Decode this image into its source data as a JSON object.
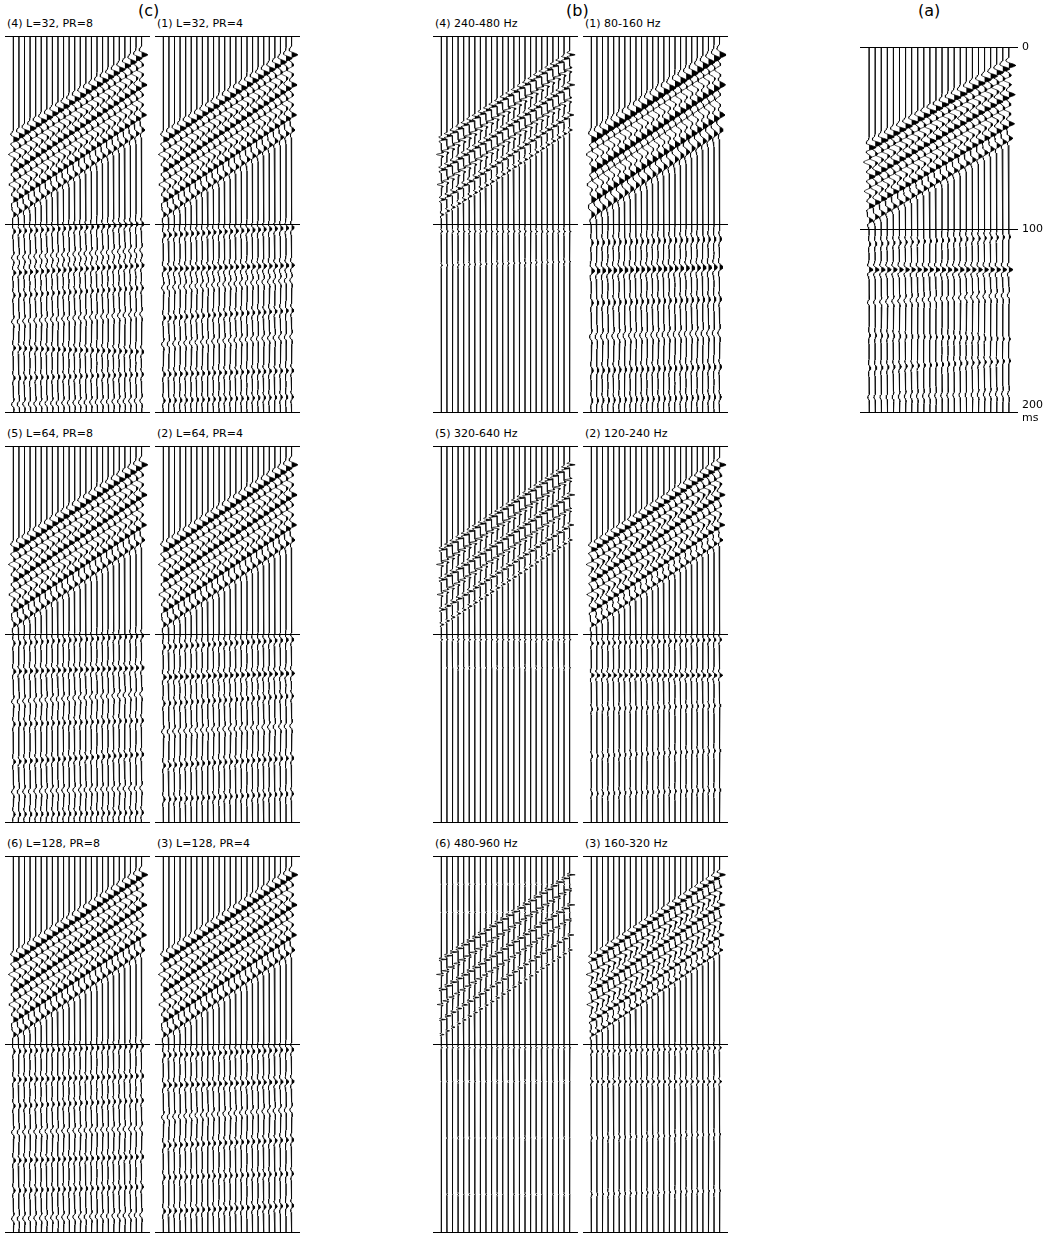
{
  "chart_data": [
    {
      "type": "wiggle",
      "group": "(c)",
      "title": "(4) L=32, PR=8",
      "traces": 24,
      "frequency_hz": 150,
      "color": "#000000",
      "ylim": [
        0,
        200
      ],
      "yticks": [
        0,
        100,
        200
      ],
      "grid": true,
      "tick_labels": false,
      "events": [
        {
          "t_first": 55,
          "t_last": 10,
          "amplitude": 0.95
        },
        {
          "t_first": 63,
          "t_last": 18,
          "amplitude": -0.75
        },
        {
          "t_first": 71,
          "t_last": 26,
          "amplitude": 0.85
        },
        {
          "t_first": 79,
          "t_last": 34,
          "amplitude": -0.7
        },
        {
          "t_first": 87,
          "t_last": 42,
          "amplitude": 0.75
        },
        {
          "t_first": 95,
          "t_last": 50,
          "amplitude": 0.5
        },
        {
          "t_first": 104,
          "t_last": 100,
          "amplitude": 0.35
        },
        {
          "t_first": 118,
          "t_last": 114,
          "amplitude": -0.3
        },
        {
          "t_first": 126,
          "t_last": 122,
          "amplitude": 0.4
        },
        {
          "t_first": 138,
          "t_last": 134,
          "amplitude": 0.3
        },
        {
          "t_first": 152,
          "t_last": 148,
          "amplitude": -0.3
        },
        {
          "t_first": 166,
          "t_last": 168,
          "amplitude": 0.35
        },
        {
          "t_first": 182,
          "t_last": 180,
          "amplitude": 0.3
        },
        {
          "t_first": 196,
          "t_last": 194,
          "amplitude": -0.3
        }
      ]
    },
    {
      "type": "wiggle",
      "group": "(c)",
      "title": "(1) L=32, PR=4",
      "traces": 24,
      "frequency_hz": 150,
      "color": "#000000",
      "ylim": [
        0,
        200
      ],
      "yticks": [
        0,
        100,
        200
      ],
      "grid": true,
      "tick_labels": false,
      "events": [
        {
          "t_first": 55,
          "t_last": 10,
          "amplitude": 0.95
        },
        {
          "t_first": 63,
          "t_last": 18,
          "amplitude": -0.75
        },
        {
          "t_first": 71,
          "t_last": 26,
          "amplitude": 0.85
        },
        {
          "t_first": 79,
          "t_last": 34,
          "amplitude": -0.7
        },
        {
          "t_first": 87,
          "t_last": 42,
          "amplitude": 0.75
        },
        {
          "t_first": 95,
          "t_last": 50,
          "amplitude": 0.5
        },
        {
          "t_first": 106,
          "t_last": 102,
          "amplitude": 0.4
        },
        {
          "t_first": 124,
          "t_last": 122,
          "amplitude": 0.45
        },
        {
          "t_first": 134,
          "t_last": 130,
          "amplitude": -0.3
        },
        {
          "t_first": 150,
          "t_last": 146,
          "amplitude": 0.35
        },
        {
          "t_first": 164,
          "t_last": 160,
          "amplitude": -0.3
        },
        {
          "t_first": 180,
          "t_last": 178,
          "amplitude": 0.35
        },
        {
          "t_first": 194,
          "t_last": 192,
          "amplitude": 0.3
        }
      ]
    },
    {
      "type": "wiggle",
      "group": "(b)",
      "title": "(4) 240-480 Hz",
      "traces": 24,
      "frequency_hz": 360,
      "color": "#000000",
      "ylim": [
        0,
        200
      ],
      "yticks": [
        0,
        100,
        200
      ],
      "grid": true,
      "tick_labels": false,
      "events": [
        {
          "t_first": 55,
          "t_last": 10,
          "amplitude": 0.9
        },
        {
          "t_first": 63,
          "t_last": 18,
          "amplitude": -0.8
        },
        {
          "t_first": 71,
          "t_last": 26,
          "amplitude": 0.85
        },
        {
          "t_first": 79,
          "t_last": 34,
          "amplitude": -0.7
        },
        {
          "t_first": 87,
          "t_last": 42,
          "amplitude": 0.7
        },
        {
          "t_first": 95,
          "t_last": 50,
          "amplitude": 0.45
        },
        {
          "t_first": 104,
          "t_last": 104,
          "amplitude": 0.2
        },
        {
          "t_first": 122,
          "t_last": 120,
          "amplitude": 0.15
        }
      ]
    },
    {
      "type": "wiggle",
      "group": "(b)",
      "title": "(1) 80-160 Hz",
      "traces": 24,
      "frequency_hz": 120,
      "color": "#000000",
      "ylim": [
        0,
        200
      ],
      "yticks": [
        0,
        100,
        200
      ],
      "grid": true,
      "tick_labels": false,
      "events": [
        {
          "t_first": 55,
          "t_last": 10,
          "amplitude": 1.0
        },
        {
          "t_first": 63,
          "t_last": 18,
          "amplitude": -0.8
        },
        {
          "t_first": 71,
          "t_last": 26,
          "amplitude": 0.9
        },
        {
          "t_first": 79,
          "t_last": 34,
          "amplitude": -0.7
        },
        {
          "t_first": 87,
          "t_last": 42,
          "amplitude": 0.8
        },
        {
          "t_first": 95,
          "t_last": 50,
          "amplitude": 0.55
        },
        {
          "t_first": 110,
          "t_last": 108,
          "amplitude": 0.3
        },
        {
          "t_first": 125,
          "t_last": 123,
          "amplitude": 0.5
        },
        {
          "t_first": 142,
          "t_last": 140,
          "amplitude": 0.3
        },
        {
          "t_first": 160,
          "t_last": 158,
          "amplitude": -0.3
        },
        {
          "t_first": 178,
          "t_last": 176,
          "amplitude": 0.3
        },
        {
          "t_first": 194,
          "t_last": 192,
          "amplitude": 0.25
        }
      ]
    },
    {
      "type": "wiggle",
      "group": "(a)",
      "traces": 24,
      "frequency_hz": 150,
      "color": "#000000",
      "ylim": [
        0,
        200
      ],
      "yticks": [
        0,
        100,
        200
      ],
      "ylabel": "ms",
      "grid": true,
      "tick_labels": "y",
      "events": [
        {
          "t_first": 55,
          "t_last": 10,
          "amplitude": 1.0
        },
        {
          "t_first": 63,
          "t_last": 18,
          "amplitude": -0.8
        },
        {
          "t_first": 71,
          "t_last": 26,
          "amplitude": 0.9
        },
        {
          "t_first": 79,
          "t_last": 34,
          "amplitude": -0.7
        },
        {
          "t_first": 87,
          "t_last": 42,
          "amplitude": 0.8
        },
        {
          "t_first": 95,
          "t_last": 50,
          "amplitude": 0.55
        },
        {
          "t_first": 108,
          "t_last": 104,
          "amplitude": 0.25
        },
        {
          "t_first": 122,
          "t_last": 122,
          "amplitude": 0.55
        },
        {
          "t_first": 140,
          "t_last": 136,
          "amplitude": -0.25
        },
        {
          "t_first": 158,
          "t_last": 160,
          "amplitude": 0.2
        },
        {
          "t_first": 176,
          "t_last": 172,
          "amplitude": 0.25
        },
        {
          "t_first": 192,
          "t_last": 190,
          "amplitude": -0.2
        }
      ]
    },
    {
      "type": "wiggle",
      "group": "(c)",
      "title": "(5) L=64, PR=8",
      "traces": 24,
      "frequency_hz": 150,
      "color": "#000000",
      "ylim": [
        0,
        200
      ],
      "yticks": [
        0,
        100,
        200
      ],
      "grid": true,
      "tick_labels": false,
      "events": [
        {
          "t_first": 55,
          "t_last": 10,
          "amplitude": 0.95
        },
        {
          "t_first": 63,
          "t_last": 18,
          "amplitude": -0.75
        },
        {
          "t_first": 71,
          "t_last": 26,
          "amplitude": 0.85
        },
        {
          "t_first": 79,
          "t_last": 34,
          "amplitude": -0.7
        },
        {
          "t_first": 87,
          "t_last": 42,
          "amplitude": 0.75
        },
        {
          "t_first": 95,
          "t_last": 50,
          "amplitude": 0.5
        },
        {
          "t_first": 105,
          "t_last": 101,
          "amplitude": 0.3
        },
        {
          "t_first": 120,
          "t_last": 118,
          "amplitude": 0.4
        },
        {
          "t_first": 136,
          "t_last": 132,
          "amplitude": -0.3
        },
        {
          "t_first": 148,
          "t_last": 146,
          "amplitude": 0.3
        },
        {
          "t_first": 168,
          "t_last": 164,
          "amplitude": 0.35
        },
        {
          "t_first": 184,
          "t_last": 182,
          "amplitude": -0.3
        },
        {
          "t_first": 196,
          "t_last": 195,
          "amplitude": 0.3
        }
      ]
    },
    {
      "type": "wiggle",
      "group": "(c)",
      "title": "(2) L=64, PR=4",
      "traces": 24,
      "frequency_hz": 150,
      "color": "#000000",
      "ylim": [
        0,
        200
      ],
      "yticks": [
        0,
        100,
        200
      ],
      "grid": true,
      "tick_labels": false,
      "events": [
        {
          "t_first": 55,
          "t_last": 10,
          "amplitude": 0.95
        },
        {
          "t_first": 63,
          "t_last": 18,
          "amplitude": -0.75
        },
        {
          "t_first": 71,
          "t_last": 26,
          "amplitude": 0.85
        },
        {
          "t_first": 79,
          "t_last": 34,
          "amplitude": -0.7
        },
        {
          "t_first": 87,
          "t_last": 42,
          "amplitude": 0.75
        },
        {
          "t_first": 95,
          "t_last": 50,
          "amplitude": 0.5
        },
        {
          "t_first": 107,
          "t_last": 103,
          "amplitude": 0.35
        },
        {
          "t_first": 123,
          "t_last": 121,
          "amplitude": 0.45
        },
        {
          "t_first": 137,
          "t_last": 133,
          "amplitude": 0.3
        },
        {
          "t_first": 152,
          "t_last": 149,
          "amplitude": -0.3
        },
        {
          "t_first": 170,
          "t_last": 166,
          "amplitude": 0.35
        },
        {
          "t_first": 188,
          "t_last": 185,
          "amplitude": 0.3
        }
      ]
    },
    {
      "type": "wiggle",
      "group": "(b)",
      "title": "(5) 320-640 Hz",
      "traces": 24,
      "frequency_hz": 480,
      "color": "#000000",
      "ylim": [
        0,
        200
      ],
      "yticks": [
        0,
        100,
        200
      ],
      "grid": true,
      "tick_labels": false,
      "events": [
        {
          "t_first": 55,
          "t_last": 10,
          "amplitude": 0.9
        },
        {
          "t_first": 63,
          "t_last": 18,
          "amplitude": -0.8
        },
        {
          "t_first": 71,
          "t_last": 26,
          "amplitude": 0.85
        },
        {
          "t_first": 79,
          "t_last": 34,
          "amplitude": -0.7
        },
        {
          "t_first": 87,
          "t_last": 42,
          "amplitude": 0.7
        },
        {
          "t_first": 95,
          "t_last": 50,
          "amplitude": 0.45
        },
        {
          "t_first": 103,
          "t_last": 103,
          "amplitude": 0.2
        },
        {
          "t_first": 118,
          "t_last": 118,
          "amplitude": 0.1
        }
      ]
    },
    {
      "type": "wiggle",
      "group": "(b)",
      "title": "(2) 120-240 Hz",
      "traces": 24,
      "frequency_hz": 180,
      "color": "#000000",
      "ylim": [
        0,
        200
      ],
      "yticks": [
        0,
        100,
        200
      ],
      "grid": true,
      "tick_labels": false,
      "events": [
        {
          "t_first": 55,
          "t_last": 10,
          "amplitude": 1.0
        },
        {
          "t_first": 63,
          "t_last": 18,
          "amplitude": -0.8
        },
        {
          "t_first": 71,
          "t_last": 26,
          "amplitude": 0.9
        },
        {
          "t_first": 79,
          "t_last": 34,
          "amplitude": -0.7
        },
        {
          "t_first": 87,
          "t_last": 42,
          "amplitude": 0.8
        },
        {
          "t_first": 95,
          "t_last": 50,
          "amplitude": 0.5
        },
        {
          "t_first": 105,
          "t_last": 103,
          "amplitude": 0.3
        },
        {
          "t_first": 122,
          "t_last": 122,
          "amplitude": 0.45
        },
        {
          "t_first": 140,
          "t_last": 138,
          "amplitude": 0.2
        },
        {
          "t_first": 165,
          "t_last": 162,
          "amplitude": 0.2
        },
        {
          "t_first": 185,
          "t_last": 183,
          "amplitude": 0.2
        }
      ]
    },
    {
      "type": "wiggle",
      "group": "(c)",
      "title": "(6) L=128, PR=8",
      "traces": 24,
      "frequency_hz": 150,
      "color": "#000000",
      "ylim": [
        0,
        200
      ],
      "yticks": [
        0,
        100,
        200
      ],
      "grid": true,
      "tick_labels": false,
      "events": [
        {
          "t_first": 55,
          "t_last": 10,
          "amplitude": 0.95
        },
        {
          "t_first": 63,
          "t_last": 18,
          "amplitude": -0.75
        },
        {
          "t_first": 71,
          "t_last": 26,
          "amplitude": 0.85
        },
        {
          "t_first": 79,
          "t_last": 34,
          "amplitude": -0.7
        },
        {
          "t_first": 87,
          "t_last": 42,
          "amplitude": 0.75
        },
        {
          "t_first": 95,
          "t_last": 50,
          "amplitude": 0.5
        },
        {
          "t_first": 104,
          "t_last": 101,
          "amplitude": 0.3
        },
        {
          "t_first": 119,
          "t_last": 117,
          "amplitude": 0.35
        },
        {
          "t_first": 133,
          "t_last": 130,
          "amplitude": 0.3
        },
        {
          "t_first": 147,
          "t_last": 145,
          "amplitude": -0.3
        },
        {
          "t_first": 162,
          "t_last": 160,
          "amplitude": 0.35
        },
        {
          "t_first": 178,
          "t_last": 176,
          "amplitude": 0.3
        },
        {
          "t_first": 193,
          "t_last": 191,
          "amplitude": -0.3
        }
      ]
    },
    {
      "type": "wiggle",
      "group": "(c)",
      "title": "(3) L=128, PR=4",
      "traces": 24,
      "frequency_hz": 150,
      "color": "#000000",
      "ylim": [
        0,
        200
      ],
      "yticks": [
        0,
        100,
        200
      ],
      "grid": true,
      "tick_labels": false,
      "events": [
        {
          "t_first": 55,
          "t_last": 10,
          "amplitude": 0.95
        },
        {
          "t_first": 63,
          "t_last": 18,
          "amplitude": -0.75
        },
        {
          "t_first": 71,
          "t_last": 26,
          "amplitude": 0.85
        },
        {
          "t_first": 79,
          "t_last": 34,
          "amplitude": -0.7
        },
        {
          "t_first": 87,
          "t_last": 42,
          "amplitude": 0.75
        },
        {
          "t_first": 95,
          "t_last": 50,
          "amplitude": 0.5
        },
        {
          "t_first": 106,
          "t_last": 103,
          "amplitude": 0.35
        },
        {
          "t_first": 122,
          "t_last": 120,
          "amplitude": 0.4
        },
        {
          "t_first": 139,
          "t_last": 135,
          "amplitude": -0.3
        },
        {
          "t_first": 154,
          "t_last": 151,
          "amplitude": 0.35
        },
        {
          "t_first": 171,
          "t_last": 169,
          "amplitude": 0.3
        },
        {
          "t_first": 189,
          "t_last": 186,
          "amplitude": 0.35
        }
      ]
    },
    {
      "type": "wiggle",
      "group": "(b)",
      "title": "(6) 480-960 Hz",
      "traces": 24,
      "frequency_hz": 720,
      "color": "#000000",
      "ylim": [
        0,
        200
      ],
      "yticks": [
        0,
        100,
        200
      ],
      "grid": true,
      "tick_labels": false,
      "events": [
        {
          "t_first": 15,
          "t_last": 15,
          "amplitude": 0.12
        },
        {
          "t_first": 30,
          "t_last": 30,
          "amplitude": 0.12
        },
        {
          "t_first": 55,
          "t_last": 10,
          "amplitude": 0.9
        },
        {
          "t_first": 63,
          "t_last": 18,
          "amplitude": -0.8
        },
        {
          "t_first": 71,
          "t_last": 26,
          "amplitude": 0.85
        },
        {
          "t_first": 79,
          "t_last": 34,
          "amplitude": -0.7
        },
        {
          "t_first": 87,
          "t_last": 42,
          "amplitude": 0.7
        },
        {
          "t_first": 95,
          "t_last": 50,
          "amplitude": 0.45
        },
        {
          "t_first": 102,
          "t_last": 102,
          "amplitude": 0.2
        },
        {
          "t_first": 120,
          "t_last": 120,
          "amplitude": 0.12
        },
        {
          "t_first": 150,
          "t_last": 150,
          "amplitude": 0.1
        },
        {
          "t_first": 180,
          "t_last": 180,
          "amplitude": 0.1
        }
      ]
    },
    {
      "type": "wiggle",
      "group": "(b)",
      "title": "(3) 160-320 Hz",
      "traces": 24,
      "frequency_hz": 240,
      "color": "#000000",
      "ylim": [
        0,
        200
      ],
      "yticks": [
        0,
        100,
        200
      ],
      "grid": true,
      "tick_labels": false,
      "events": [
        {
          "t_first": 55,
          "t_last": 10,
          "amplitude": 0.95
        },
        {
          "t_first": 63,
          "t_last": 18,
          "amplitude": -0.8
        },
        {
          "t_first": 71,
          "t_last": 26,
          "amplitude": 0.9
        },
        {
          "t_first": 79,
          "t_last": 34,
          "amplitude": -0.7
        },
        {
          "t_first": 87,
          "t_last": 42,
          "amplitude": 0.75
        },
        {
          "t_first": 95,
          "t_last": 50,
          "amplitude": 0.5
        },
        {
          "t_first": 104,
          "t_last": 102,
          "amplitude": 0.25
        },
        {
          "t_first": 120,
          "t_last": 120,
          "amplitude": 0.3
        },
        {
          "t_first": 150,
          "t_last": 148,
          "amplitude": 0.15
        },
        {
          "t_first": 180,
          "t_last": 178,
          "amplitude": 0.15
        }
      ]
    }
  ]
}
